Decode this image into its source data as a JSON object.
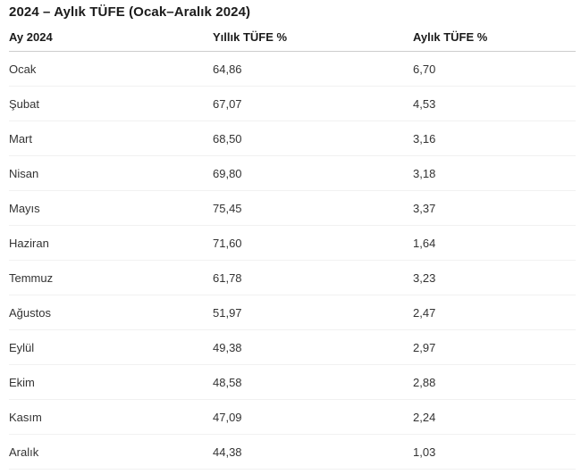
{
  "title": "2024 – Aylık TÜFE (Ocak–Aralık 2024)",
  "colors": {
    "background": "#ffffff",
    "title_text": "#1b1b1b",
    "cell_text": "#333333",
    "header_rule": "#cdcdcd",
    "row_divider": "#f1f1f1"
  },
  "table": {
    "columns": [
      "Ay 2024",
      "Yıllık TÜFE %",
      "Aylık TÜFE %"
    ],
    "rows": [
      [
        "Ocak",
        "64,86",
        "6,70"
      ],
      [
        "Şubat",
        "67,07",
        "4,53"
      ],
      [
        "Mart",
        "68,50",
        "3,16"
      ],
      [
        "Nisan",
        "69,80",
        "3,18"
      ],
      [
        "Mayıs",
        "75,45",
        "3,37"
      ],
      [
        "Haziran",
        "71,60",
        "1,64"
      ],
      [
        "Temmuz",
        "61,78",
        "3,23"
      ],
      [
        "Ağustos",
        "51,97",
        "2,47"
      ],
      [
        "Eylül",
        "49,38",
        "2,97"
      ],
      [
        "Ekim",
        "48,58",
        "2,88"
      ],
      [
        "Kasım",
        "47,09",
        "2,24"
      ],
      [
        "Aralık",
        "44,38",
        "1,03"
      ]
    ]
  },
  "chart_data": {
    "type": "table",
    "title": "2024 – Aylık TÜFE (Ocak–Aralık 2024)",
    "columns": [
      "Ay 2024",
      "Yıllık TÜFE %",
      "Aylık TÜFE %"
    ],
    "categories": [
      "Ocak",
      "Şubat",
      "Mart",
      "Nisan",
      "Mayıs",
      "Haziran",
      "Temmuz",
      "Ağustos",
      "Eylül",
      "Ekim",
      "Kasım",
      "Aralık"
    ],
    "series": [
      {
        "name": "Yıllık TÜFE %",
        "values": [
          64.86,
          67.07,
          68.5,
          69.8,
          75.45,
          71.6,
          61.78,
          51.97,
          49.38,
          48.58,
          47.09,
          44.38
        ]
      },
      {
        "name": "Aylık TÜFE %",
        "values": [
          6.7,
          4.53,
          3.16,
          3.18,
          3.37,
          1.64,
          3.23,
          2.47,
          2.97,
          2.88,
          2.24,
          1.03
        ]
      }
    ],
    "decimal_separator": ",",
    "legend_position": "none",
    "grid": "row-dividers-only"
  }
}
